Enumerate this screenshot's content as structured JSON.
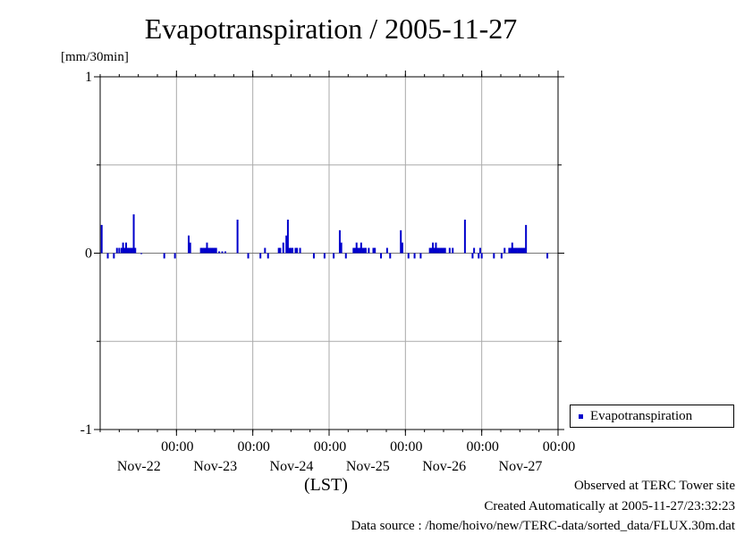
{
  "chart_data": {
    "type": "bar",
    "title": "Evapotranspiration / 2005-11-27",
    "unit_label": "[mm/30min]",
    "xlabel": "(LST)",
    "ylim": [
      -1,
      1
    ],
    "y_ticks": [
      "1",
      "0",
      "-1"
    ],
    "x_ticks": [
      {
        "time": "00:00",
        "date": "Nov-22"
      },
      {
        "time": "00:00",
        "date": "Nov-23"
      },
      {
        "time": "00:00",
        "date": "Nov-24"
      },
      {
        "time": "00:00",
        "date": "Nov-25"
      },
      {
        "time": "00:00",
        "date": "Nov-26"
      },
      {
        "time": "00:00",
        "date": "Nov-27"
      }
    ],
    "x_range_days": [
      -1,
      5
    ],
    "grid": true,
    "legend_position": "bottom-right",
    "series": [
      {
        "name": "Evapotranspiration",
        "color": "#0000cc",
        "points": [
          [
            -0.98,
            0.16
          ],
          [
            -0.9,
            -0.03
          ],
          [
            -0.82,
            -0.03
          ],
          [
            -0.78,
            0.03
          ],
          [
            -0.75,
            0.03
          ],
          [
            -0.72,
            0.03
          ],
          [
            -0.7,
            0.06
          ],
          [
            -0.68,
            0.03
          ],
          [
            -0.66,
            0.06
          ],
          [
            -0.64,
            0.03
          ],
          [
            -0.62,
            0.03
          ],
          [
            -0.6,
            0.03
          ],
          [
            -0.58,
            0.03
          ],
          [
            -0.56,
            0.22
          ],
          [
            -0.54,
            0.03
          ],
          [
            -0.46,
            0
          ],
          [
            -0.16,
            -0.03
          ],
          [
            -0.02,
            -0.03
          ],
          [
            0.16,
            0.1
          ],
          [
            0.18,
            0.06
          ],
          [
            0.32,
            0.03
          ],
          [
            0.34,
            0.03
          ],
          [
            0.36,
            0.03
          ],
          [
            0.38,
            0.03
          ],
          [
            0.4,
            0.06
          ],
          [
            0.42,
            0.03
          ],
          [
            0.44,
            0.03
          ],
          [
            0.46,
            0.03
          ],
          [
            0.48,
            0.03
          ],
          [
            0.5,
            0.03
          ],
          [
            0.52,
            0.03
          ],
          [
            0.56,
            0.01
          ],
          [
            0.6,
            0.01
          ],
          [
            0.64,
            0.01
          ],
          [
            0.8,
            0.19
          ],
          [
            0.94,
            -0.03
          ],
          [
            1.1,
            -0.03
          ],
          [
            1.16,
            0.03
          ],
          [
            1.2,
            -0.03
          ],
          [
            1.34,
            0.03
          ],
          [
            1.36,
            0.03
          ],
          [
            1.4,
            0.06
          ],
          [
            1.44,
            0.1
          ],
          [
            1.46,
            0.19
          ],
          [
            1.48,
            0.03
          ],
          [
            1.5,
            0.03
          ],
          [
            1.52,
            0.03
          ],
          [
            1.56,
            0.03
          ],
          [
            1.58,
            0.03
          ],
          [
            1.62,
            0.03
          ],
          [
            1.8,
            -0.03
          ],
          [
            1.94,
            -0.03
          ],
          [
            2.06,
            -0.03
          ],
          [
            2.14,
            0.13
          ],
          [
            2.16,
            0.06
          ],
          [
            2.22,
            -0.03
          ],
          [
            2.32,
            0.03
          ],
          [
            2.34,
            0.03
          ],
          [
            2.36,
            0.06
          ],
          [
            2.38,
            0.03
          ],
          [
            2.4,
            0.03
          ],
          [
            2.42,
            0.06
          ],
          [
            2.44,
            0.03
          ],
          [
            2.46,
            0.03
          ],
          [
            2.48,
            0.03
          ],
          [
            2.52,
            0.03
          ],
          [
            2.58,
            0.03
          ],
          [
            2.6,
            0.03
          ],
          [
            2.68,
            -0.03
          ],
          [
            2.76,
            0.03
          ],
          [
            2.8,
            -0.03
          ],
          [
            2.94,
            0.13
          ],
          [
            2.96,
            0.06
          ],
          [
            3.04,
            -0.03
          ],
          [
            3.12,
            -0.03
          ],
          [
            3.2,
            -0.03
          ],
          [
            3.32,
            0.03
          ],
          [
            3.34,
            0.03
          ],
          [
            3.36,
            0.06
          ],
          [
            3.38,
            0.03
          ],
          [
            3.4,
            0.06
          ],
          [
            3.42,
            0.03
          ],
          [
            3.44,
            0.03
          ],
          [
            3.46,
            0.03
          ],
          [
            3.48,
            0.03
          ],
          [
            3.5,
            0.03
          ],
          [
            3.52,
            0.03
          ],
          [
            3.58,
            0.03
          ],
          [
            3.62,
            0.03
          ],
          [
            3.78,
            0.19
          ],
          [
            3.88,
            -0.03
          ],
          [
            3.9,
            0.03
          ],
          [
            3.96,
            -0.03
          ],
          [
            3.98,
            0.03
          ],
          [
            4.0,
            -0.03
          ],
          [
            4.16,
            -0.03
          ],
          [
            4.26,
            -0.03
          ],
          [
            4.3,
            0.03
          ],
          [
            4.36,
            0.03
          ],
          [
            4.38,
            0.03
          ],
          [
            4.4,
            0.06
          ],
          [
            4.42,
            0.03
          ],
          [
            4.44,
            0.03
          ],
          [
            4.46,
            0.03
          ],
          [
            4.48,
            0.03
          ],
          [
            4.5,
            0.03
          ],
          [
            4.52,
            0.03
          ],
          [
            4.54,
            0.03
          ],
          [
            4.56,
            0.03
          ],
          [
            4.58,
            0.16
          ],
          [
            4.86,
            -0.03
          ]
        ]
      }
    ]
  },
  "footer": {
    "observed": "Observed at TERC Tower site",
    "created": "Created Automatically at 2005-11-27/23:32:23",
    "source": "Data source : /home/hoivo/new/TERC-data/sorted_data/FLUX.30m.dat"
  }
}
